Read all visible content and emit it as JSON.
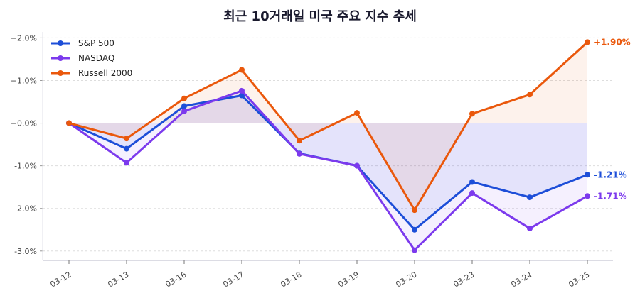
{
  "chart_data": {
    "type": "line",
    "title": "최근 10거래일 미국 주요 지수 추세",
    "xlabel": "",
    "ylabel": "",
    "categories": [
      "03-12",
      "03-13",
      "03-16",
      "03-17",
      "03-18",
      "03-19",
      "03-20",
      "03-23",
      "03-24",
      "03-25"
    ],
    "ylim": [
      -3.22,
      2.14
    ],
    "yticks": [
      -3,
      -2,
      -1,
      0,
      1,
      2
    ],
    "ytick_labels": [
      "-3.0%",
      "-2.0%",
      "-1.0%",
      "+0.0%",
      "+1.0%",
      "+2.0%"
    ],
    "grid": "horizontal dashed",
    "zero_line": true,
    "legend": "top-left",
    "series": [
      {
        "name": "S&P 500",
        "color": "#1d4ed8",
        "values": [
          0,
          -0.6,
          0.4,
          0.65,
          -0.71,
          -1.0,
          -2.5,
          -1.38,
          -1.74,
          -1.21
        ],
        "end_label": "-1.21%"
      },
      {
        "name": "NASDAQ",
        "color": "#7c3aed",
        "values": [
          0,
          -0.93,
          0.28,
          0.76,
          -0.72,
          -1.0,
          -2.98,
          -1.64,
          -2.47,
          -1.71
        ],
        "end_label": "-1.71%"
      },
      {
        "name": "Russell 2000",
        "color": "#ea580c",
        "values": [
          0,
          -0.36,
          0.58,
          1.25,
          -0.41,
          0.24,
          -2.04,
          0.22,
          0.67,
          1.9
        ],
        "end_label": "+1.90%"
      }
    ]
  }
}
